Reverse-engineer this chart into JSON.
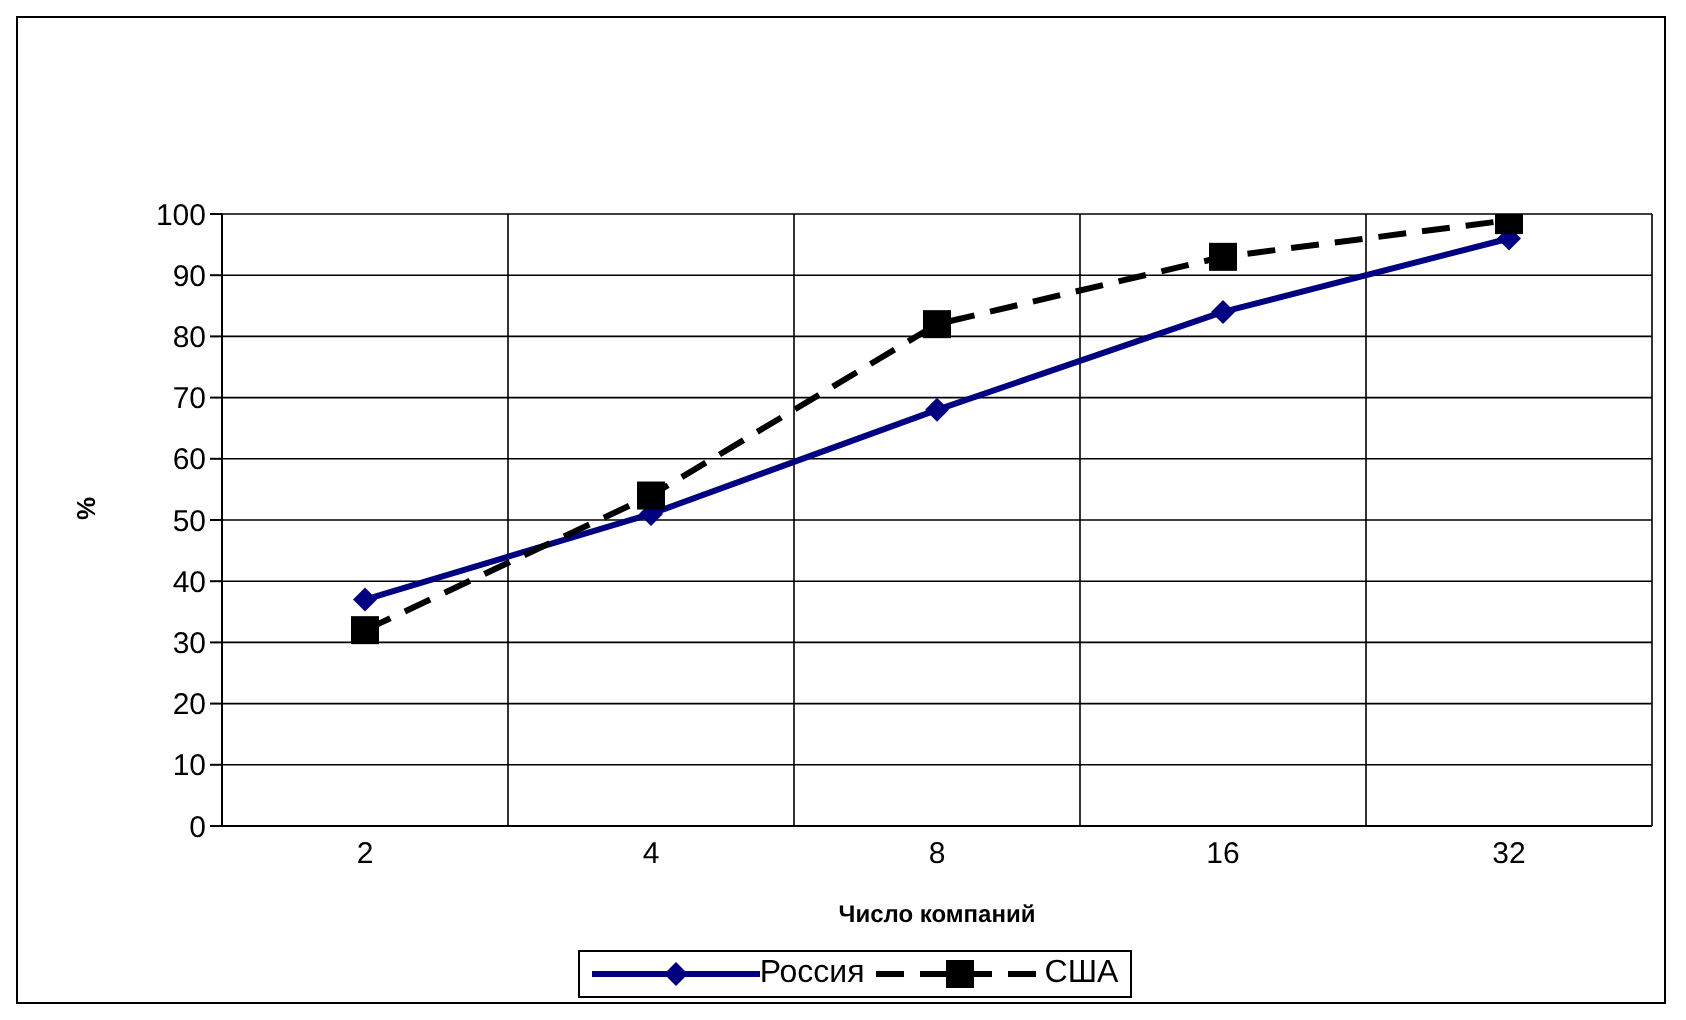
{
  "chart_data": {
    "type": "line",
    "xlabel": "Число компаний",
    "ylabel": "%",
    "categories": [
      "2",
      "4",
      "8",
      "16",
      "32"
    ],
    "series": [
      {
        "name": "Россия",
        "color": "#000080",
        "values": [
          37,
          51,
          68,
          84,
          96
        ],
        "marker": "diamond",
        "line_style": "solid"
      },
      {
        "name": "США",
        "color": "#000000",
        "values": [
          32,
          54,
          82,
          93,
          99
        ],
        "marker": "square",
        "line_style": "dashed"
      }
    ],
    "ylim": [
      0,
      100
    ],
    "yticks": [
      0,
      10,
      20,
      30,
      40,
      50,
      60,
      70,
      80,
      90,
      100
    ],
    "grid": true,
    "legend": "bottom"
  }
}
